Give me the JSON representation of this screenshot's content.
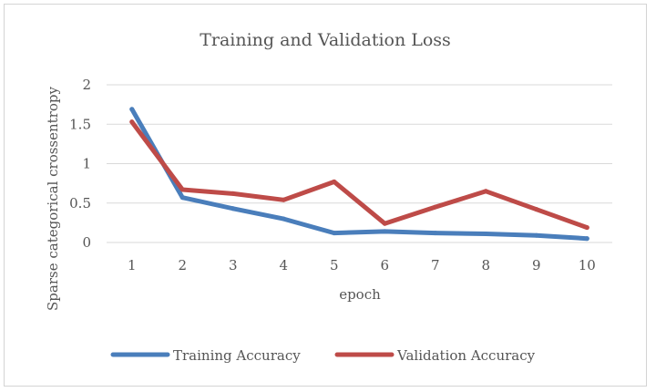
{
  "chart_data": {
    "type": "line",
    "title": "Training and Validation Loss",
    "xlabel": "epoch",
    "ylabel": "Sparse categorical crossentropy",
    "x": [
      "1",
      "2",
      "3",
      "4",
      "5",
      "6",
      "7",
      "8",
      "9",
      "10"
    ],
    "ylim": [
      0,
      2
    ],
    "yticks": [
      "0",
      "0.5",
      "1",
      "1.5",
      "2"
    ],
    "grid": true,
    "legend_position": "bottom",
    "series": [
      {
        "name": "Training Accuracy",
        "color": "#4a7ebb",
        "values": [
          1.69,
          0.57,
          0.43,
          0.3,
          0.12,
          0.14,
          0.12,
          0.11,
          0.09,
          0.05
        ]
      },
      {
        "name": "Validation Accuracy",
        "color": "#be4b48",
        "values": [
          1.53,
          0.67,
          0.62,
          0.54,
          0.77,
          0.24,
          0.45,
          0.65,
          0.42,
          0.19
        ]
      }
    ]
  }
}
